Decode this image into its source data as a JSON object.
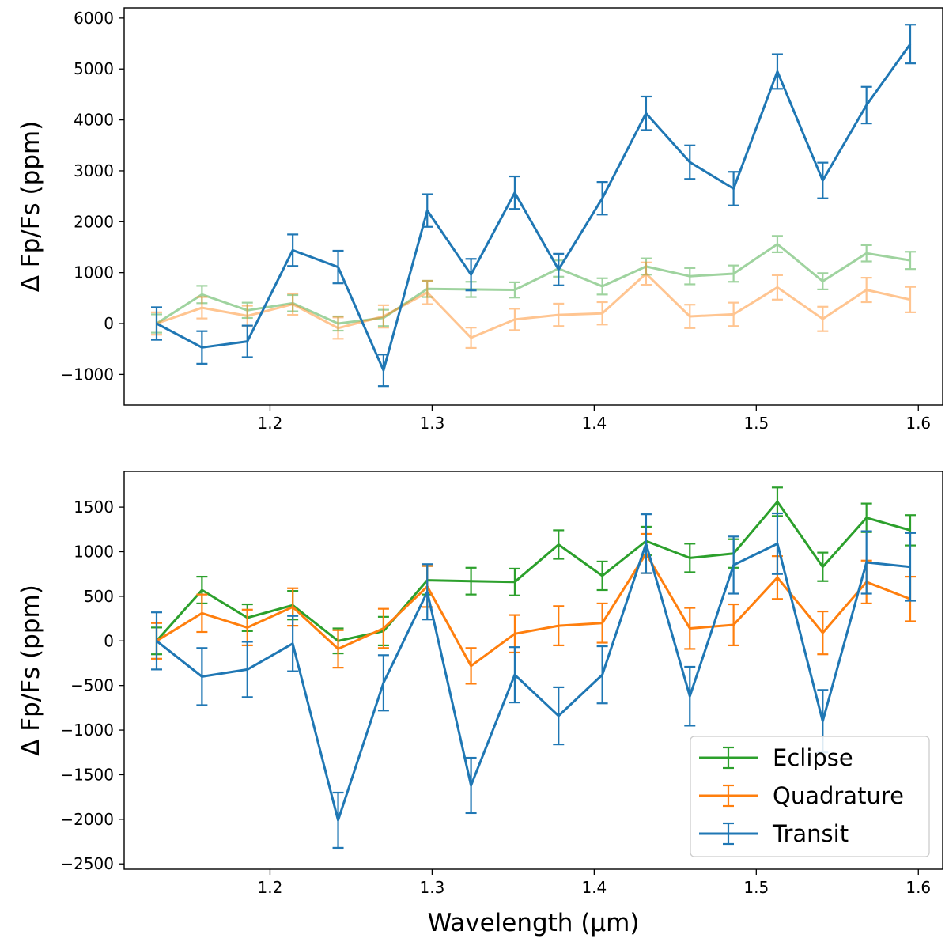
{
  "chart_data": [
    {
      "type": "line",
      "panel": "top",
      "title": "",
      "xlabel": "",
      "ylabel": "Δ Fp/Fs (ppm)",
      "xlim": [
        1.11,
        1.615
      ],
      "ylim": [
        -1600,
        6200
      ],
      "xticks": [
        1.2,
        1.3,
        1.4,
        1.5,
        1.6
      ],
      "xtick_labels": [
        "1.2",
        "1.3",
        "1.4",
        "1.5",
        "1.6"
      ],
      "yticks": [
        -1000,
        0,
        1000,
        2000,
        3000,
        4000,
        5000,
        6000
      ],
      "ytick_labels": [
        "−1000",
        "0",
        "1000",
        "2000",
        "3000",
        "4000",
        "5000",
        "6000"
      ],
      "grid": false,
      "x": [
        1.13,
        1.158,
        1.186,
        1.214,
        1.242,
        1.27,
        1.297,
        1.324,
        1.351,
        1.378,
        1.405,
        1.432,
        1.459,
        1.486,
        1.513,
        1.541,
        1.568,
        1.595
      ],
      "series": [
        {
          "key": "eclipse",
          "color": "#2ca02c",
          "alpha": 0.45,
          "values": [
            0,
            570,
            260,
            400,
            0,
            110,
            680,
            670,
            660,
            1080,
            730,
            1120,
            930,
            980,
            1560,
            830,
            1380,
            1240
          ],
          "errors": [
            180,
            170,
            150,
            160,
            140,
            160,
            160,
            150,
            150,
            160,
            160,
            160,
            160,
            160,
            160,
            160,
            160,
            170
          ]
        },
        {
          "key": "quadrature",
          "color": "#ff7f0e",
          "alpha": 0.45,
          "values": [
            0,
            310,
            150,
            380,
            -90,
            140,
            610,
            -280,
            80,
            170,
            200,
            980,
            140,
            180,
            710,
            90,
            660,
            470
          ],
          "errors": [
            220,
            210,
            200,
            210,
            210,
            220,
            230,
            200,
            210,
            220,
            220,
            220,
            230,
            230,
            240,
            240,
            240,
            250
          ]
        },
        {
          "key": "transit",
          "color": "#1f77b4",
          "alpha": 1.0,
          "values": [
            0,
            -470,
            -350,
            1440,
            1110,
            -920,
            2220,
            960,
            2570,
            1060,
            2460,
            4130,
            3170,
            2650,
            4950,
            2810,
            4290,
            5490
          ],
          "errors": [
            320,
            320,
            310,
            310,
            320,
            310,
            320,
            310,
            320,
            310,
            320,
            330,
            330,
            330,
            340,
            350,
            360,
            380
          ]
        }
      ]
    },
    {
      "type": "line",
      "panel": "bottom",
      "title": "",
      "xlabel": "Wavelength (μm)",
      "ylabel": "Δ Fp/Fs (ppm)",
      "xlim": [
        1.11,
        1.615
      ],
      "ylim": [
        -2560,
        1900
      ],
      "xticks": [
        1.2,
        1.3,
        1.4,
        1.5,
        1.6
      ],
      "xtick_labels": [
        "1.2",
        "1.3",
        "1.4",
        "1.5",
        "1.6"
      ],
      "yticks": [
        -2500,
        -2000,
        -1500,
        -1000,
        -500,
        0,
        500,
        1000,
        1500
      ],
      "ytick_labels": [
        "−2500",
        "−2000",
        "−1500",
        "−1000",
        "−500",
        "0",
        "500",
        "1000",
        "1500"
      ],
      "grid": false,
      "legend_position": "bottom-right",
      "x": [
        1.13,
        1.158,
        1.186,
        1.214,
        1.242,
        1.27,
        1.297,
        1.324,
        1.351,
        1.378,
        1.405,
        1.432,
        1.459,
        1.486,
        1.513,
        1.541,
        1.568,
        1.595
      ],
      "series": [
        {
          "key": "eclipse",
          "name": "Eclipse",
          "color": "#2ca02c",
          "alpha": 1.0,
          "values": [
            0,
            570,
            260,
            400,
            0,
            110,
            680,
            670,
            660,
            1080,
            730,
            1120,
            930,
            980,
            1560,
            830,
            1380,
            1240
          ],
          "errors": [
            150,
            150,
            150,
            160,
            140,
            160,
            160,
            150,
            150,
            160,
            160,
            160,
            160,
            160,
            160,
            160,
            160,
            170
          ]
        },
        {
          "key": "quadrature",
          "name": "Quadrature",
          "color": "#ff7f0e",
          "alpha": 1.0,
          "values": [
            0,
            310,
            150,
            380,
            -90,
            140,
            610,
            -280,
            80,
            170,
            200,
            980,
            140,
            180,
            710,
            90,
            660,
            470
          ],
          "errors": [
            200,
            210,
            200,
            210,
            210,
            220,
            230,
            200,
            210,
            220,
            220,
            220,
            230,
            230,
            240,
            240,
            240,
            250
          ]
        },
        {
          "key": "transit",
          "name": "Transit",
          "color": "#1f77b4",
          "alpha": 1.0,
          "values": [
            0,
            -400,
            -320,
            -30,
            -2010,
            -470,
            550,
            -1620,
            -380,
            -840,
            -380,
            1090,
            -620,
            850,
            1090,
            -900,
            880,
            830
          ],
          "errors": [
            320,
            320,
            310,
            310,
            310,
            310,
            310,
            310,
            310,
            320,
            320,
            330,
            330,
            320,
            340,
            350,
            350,
            380
          ]
        }
      ]
    }
  ]
}
